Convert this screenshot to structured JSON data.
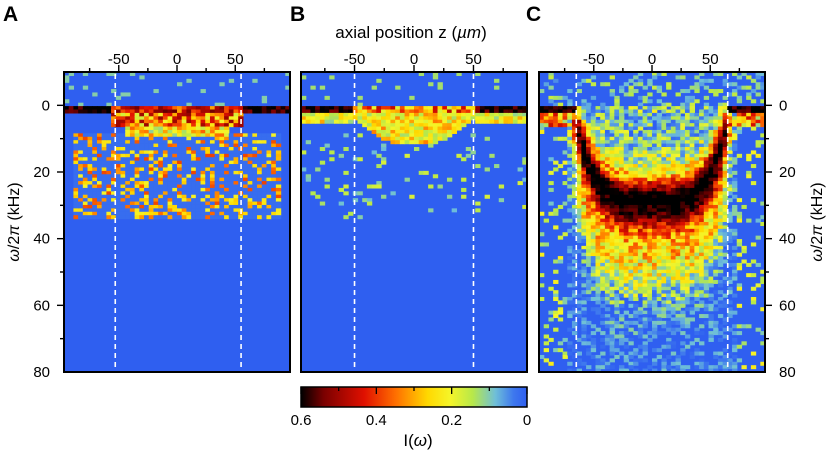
{
  "chart_data": {
    "type": "heatmap",
    "panels": [
      {
        "label": "A",
        "ne_cut": 35,
        "dash_z": [
          -53,
          55
        ],
        "hot_band": [
          0,
          2
        ],
        "zmin": -97,
        "zmax": 97
      },
      {
        "label": "B",
        "ne_cut": 35,
        "dash_z": [
          -50,
          50
        ],
        "hot_band": [
          0,
          2
        ],
        "zmin": -95,
        "zmax": 95
      },
      {
        "label": "C",
        "ne_cut": 80,
        "dash_z": [
          -65,
          65
        ],
        "hot_band": [
          20,
          35
        ],
        "zmin": -97,
        "zmax": 97
      }
    ],
    "x_axis": {
      "label": "axial position z (µm)",
      "label_prefix": "axial position z (",
      "label_unit": "µm",
      "label_suffix": ")",
      "ticks": [
        -50,
        0,
        50
      ],
      "tick_labels": [
        "-50",
        "0",
        "50"
      ]
    },
    "y_axis": {
      "label": "ω/2π (kHz)",
      "label_omega": "ω",
      "label_mid": "/2",
      "label_pi": "π",
      "label_suffix": " (kHz)",
      "range": [
        -10,
        80
      ],
      "ticks": [
        0,
        20,
        40,
        60,
        80
      ],
      "tick_labels": [
        "0",
        "20",
        "40",
        "60",
        "80"
      ],
      "inverted": true
    },
    "colorbar": {
      "label": "I(ω)",
      "label_prefix": "I(",
      "label_omega": "ω",
      "label_suffix": ")",
      "range": [
        0,
        0.6
      ],
      "ticks": [
        0.6,
        0.4,
        0.2,
        0
      ],
      "tick_labels": [
        "0.6",
        "0.4",
        "0.2",
        "0"
      ],
      "colormap": "jet-hot (blue → cyan → yellow → red → black)"
    }
  }
}
